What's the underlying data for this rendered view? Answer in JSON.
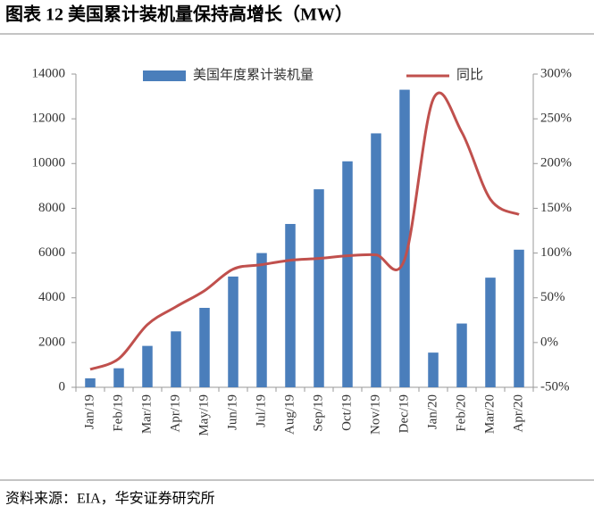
{
  "title": "图表 12 美国累计装机量保持高增长（MW）",
  "source": "资料来源：EIA，华安证券研究所",
  "chart_data": {
    "type": "bar-line",
    "categories": [
      "Jan/19",
      "Feb/19",
      "Mar/19",
      "Apr/19",
      "May/19",
      "Jun/19",
      "Jul/19",
      "Aug/19",
      "Sep/19",
      "Oct/19",
      "Nov/19",
      "Dec/19",
      "Jan/20",
      "Feb/20",
      "Mar/20",
      "Apr/20"
    ],
    "series": [
      {
        "name": "美国年度累计装机量",
        "type": "bar",
        "color": "#4a7ebb",
        "values": [
          400,
          850,
          1850,
          2500,
          3550,
          4950,
          6000,
          7300,
          8850,
          10100,
          11350,
          13300,
          1550,
          2850,
          4900,
          6150
        ]
      },
      {
        "name": "同比",
        "type": "line",
        "axis": "y2",
        "color": "#c0504d",
        "values": [
          -30,
          -18,
          20,
          40,
          58,
          82,
          87,
          92,
          94,
          97,
          98,
          93,
          272,
          235,
          160,
          143
        ]
      }
    ],
    "ylim": [
      0,
      14000
    ],
    "yticks": [
      0,
      2000,
      4000,
      6000,
      8000,
      10000,
      12000,
      14000
    ],
    "y2lim": [
      -50,
      300
    ],
    "y2ticks": [
      {
        "value": -50,
        "label": "-50%"
      },
      {
        "value": 0,
        "label": "0%"
      },
      {
        "value": 50,
        "label": "50%"
      },
      {
        "value": 100,
        "label": "100%"
      },
      {
        "value": 150,
        "label": "150%"
      },
      {
        "value": 200,
        "label": "200%"
      },
      {
        "value": 250,
        "label": "250%"
      },
      {
        "value": 300,
        "label": "300%"
      }
    ]
  }
}
